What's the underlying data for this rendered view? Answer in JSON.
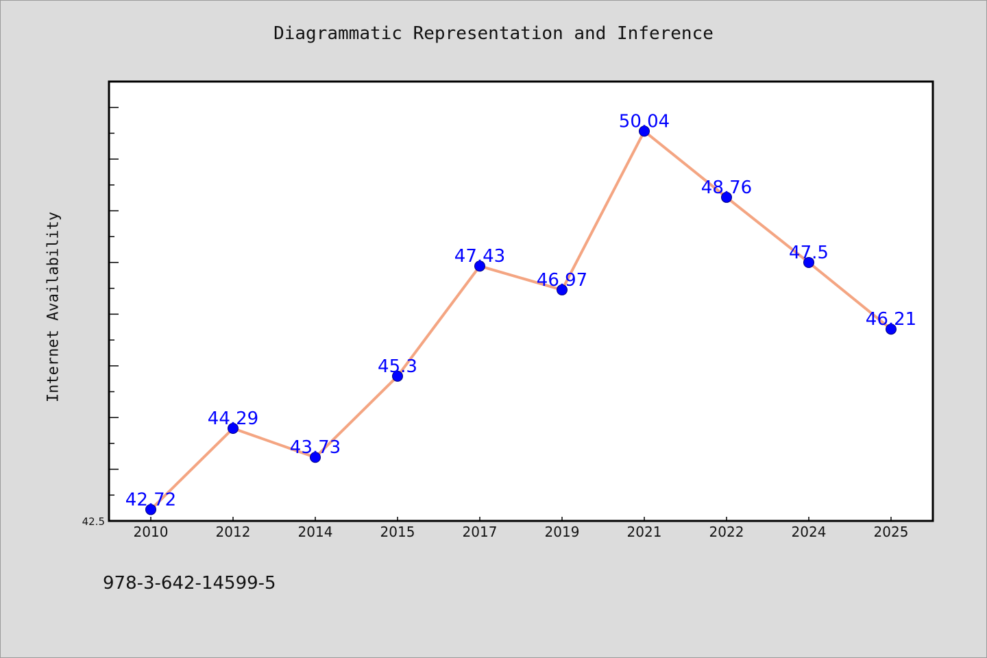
{
  "title": "Diagrammatic Representation and Inference",
  "footer": "978-3-642-14599-5",
  "chart_data": {
    "type": "line",
    "title": "Diagrammatic Representation and Inference",
    "xlabel": "",
    "ylabel": "Internet Availability",
    "categories": [
      "2010",
      "2012",
      "2014",
      "2015",
      "2017",
      "2019",
      "2021",
      "2022",
      "2024",
      "2025"
    ],
    "series": [
      {
        "values": [
          42.72,
          44.29,
          43.73,
          45.3,
          47.43,
          46.97,
          50.04,
          48.76,
          47.5,
          46.21
        ],
        "labels": [
          "42.72",
          "44.29",
          "43.73",
          "45.3",
          "47.43",
          "46.97",
          "50.04",
          "48.76",
          "47.5",
          "46.21"
        ]
      }
    ],
    "ylim": [
      42.5,
      51.0
    ],
    "y_tick_label": "42.5",
    "grid": false,
    "legend": "none",
    "colors": {
      "line": "#f4a582",
      "marker": "#0000ff",
      "label": "#0000ff",
      "background": "#dcdcdc",
      "plot_background": "#ffffff"
    }
  }
}
